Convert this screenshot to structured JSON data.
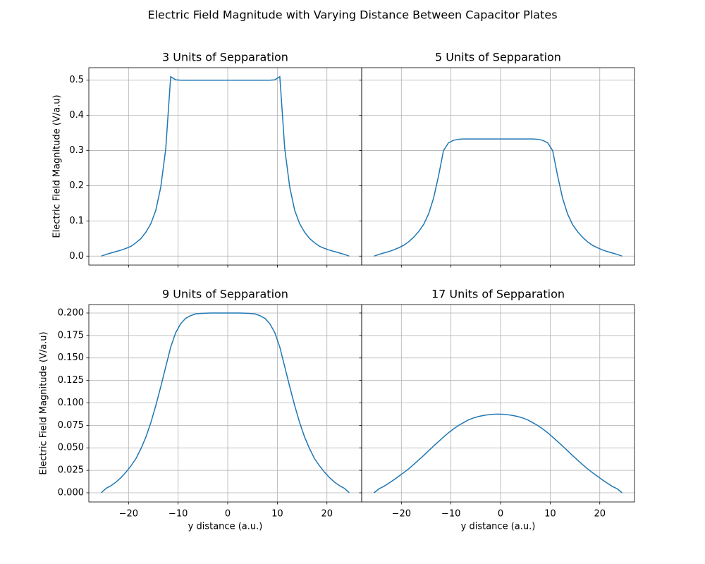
{
  "title": "Electric Field Magnitude with Varying Distance Between Capacitor Plates",
  "chart_data": [
    {
      "type": "line",
      "title": "3 Units of Sepparation",
      "ylabel": "Electric Field Magnitude (V/a.u)",
      "x": [
        -25.5,
        -24.5,
        -23.5,
        -22.5,
        -21.5,
        -20.5,
        -19.5,
        -18.5,
        -17.5,
        -16.5,
        -15.5,
        -14.5,
        -13.5,
        -12.5,
        -11.5,
        -10.5,
        -9.5,
        -8.5,
        -7.5,
        -6.5,
        -5.5,
        -4.5,
        -3.5,
        -2.5,
        -1.5,
        -0.5,
        0.5,
        1.5,
        2.5,
        3.5,
        4.5,
        5.5,
        6.5,
        7.5,
        8.5,
        9.5,
        10.5,
        11.5,
        12.5,
        13.5,
        14.5,
        15.5,
        16.5,
        17.5,
        18.5,
        19.5,
        20.5,
        21.5,
        22.5,
        23.5,
        24.5
      ],
      "values": [
        0,
        0.005,
        0.009,
        0.013,
        0.017,
        0.022,
        0.028,
        0.038,
        0.05,
        0.068,
        0.092,
        0.13,
        0.196,
        0.304,
        0.51,
        0.501,
        0.5,
        0.5,
        0.5,
        0.5,
        0.5,
        0.5,
        0.5,
        0.5,
        0.5,
        0.5,
        0.5,
        0.5,
        0.5,
        0.5,
        0.5,
        0.5,
        0.5,
        0.5,
        0.5,
        0.501,
        0.51,
        0.304,
        0.196,
        0.13,
        0.092,
        0.068,
        0.05,
        0.038,
        0.028,
        0.022,
        0.017,
        0.013,
        0.009,
        0.005,
        0
      ],
      "color": "#1f77b4",
      "grid": true,
      "xlim": [
        -28,
        27
      ],
      "xticks": [
        -20,
        -10,
        0,
        10,
        20
      ],
      "xtick_labels": false,
      "ylim": [
        -0.0255,
        0.5355
      ],
      "yticks": [
        {
          "value": 0,
          "label": "0.0"
        },
        0.1,
        0.2,
        0.3,
        0.4,
        0.5
      ],
      "ytick_labels": true
    },
    {
      "type": "line",
      "title": "5 Units of Sepparation",
      "x": [
        -25.5,
        -24.5,
        -23.5,
        -22.5,
        -21.5,
        -20.5,
        -19.5,
        -18.5,
        -17.5,
        -16.5,
        -15.5,
        -14.5,
        -13.5,
        -12.5,
        -11.5,
        -10.5,
        -9.5,
        -8.5,
        -7.5,
        -6.5,
        -5.5,
        -4.5,
        -3.5,
        -2.5,
        -1.5,
        -0.5,
        0.5,
        1.5,
        2.5,
        3.5,
        4.5,
        5.5,
        6.5,
        7.5,
        8.5,
        9.5,
        10.5,
        11.5,
        12.5,
        13.5,
        14.5,
        15.5,
        16.5,
        17.5,
        18.5,
        19.5,
        20.5,
        21.5,
        22.5,
        23.5,
        24.5
      ],
      "values": [
        0,
        0.005,
        0.009,
        0.013,
        0.018,
        0.024,
        0.031,
        0.041,
        0.054,
        0.07,
        0.09,
        0.12,
        0.165,
        0.228,
        0.3,
        0.322,
        0.329,
        0.332,
        0.333,
        0.333,
        0.333,
        0.333,
        0.333,
        0.333,
        0.333,
        0.333,
        0.333,
        0.333,
        0.333,
        0.333,
        0.333,
        0.333,
        0.333,
        0.332,
        0.329,
        0.322,
        0.3,
        0.228,
        0.165,
        0.12,
        0.09,
        0.07,
        0.054,
        0.041,
        0.031,
        0.024,
        0.018,
        0.013,
        0.009,
        0.005,
        0
      ],
      "color": "#1f77b4",
      "grid": true,
      "xlim": [
        -28,
        27
      ],
      "xticks": [
        -20,
        -10,
        0,
        10,
        20
      ],
      "xtick_labels": false,
      "ylim": [
        -0.0255,
        0.5355
      ],
      "yticks": [
        0,
        0.1,
        0.2,
        0.3,
        0.4,
        0.5
      ],
      "ytick_labels": false
    },
    {
      "type": "line",
      "title": "9 Units of Sepparation",
      "ylabel": "Electric Field Magnitude (V/a.u)",
      "xlabel": "y distance (a.u.)",
      "x": [
        -25.5,
        -24.5,
        -23.5,
        -22.5,
        -21.5,
        -20.5,
        -19.5,
        -18.5,
        -17.5,
        -16.5,
        -15.5,
        -14.5,
        -13.5,
        -12.5,
        -11.5,
        -10.5,
        -9.5,
        -8.5,
        -7.5,
        -6.5,
        -5.5,
        -4.5,
        -3.5,
        -2.5,
        -1.5,
        -0.5,
        0.5,
        1.5,
        2.5,
        3.5,
        4.5,
        5.5,
        6.5,
        7.5,
        8.5,
        9.5,
        10.5,
        11.5,
        12.5,
        13.5,
        14.5,
        15.5,
        16.5,
        17.5,
        18.5,
        19.5,
        20.5,
        21.5,
        22.5,
        23.5,
        24.5
      ],
      "values": [
        0,
        0.005,
        0.008,
        0.012,
        0.017,
        0.023,
        0.03,
        0.038,
        0.049,
        0.062,
        0.078,
        0.097,
        0.118,
        0.14,
        0.162,
        0.178,
        0.188,
        0.194,
        0.197,
        0.199,
        0.1995,
        0.1998,
        0.2,
        0.2,
        0.2,
        0.2,
        0.2,
        0.2,
        0.2,
        0.1998,
        0.1995,
        0.199,
        0.197,
        0.194,
        0.188,
        0.178,
        0.162,
        0.14,
        0.118,
        0.097,
        0.078,
        0.062,
        0.049,
        0.038,
        0.03,
        0.023,
        0.017,
        0.012,
        0.008,
        0.005,
        0
      ],
      "color": "#1f77b4",
      "grid": true,
      "xlim": [
        -28,
        27
      ],
      "xticks": [
        {
          "value": -20,
          "label": "−20"
        },
        {
          "value": -10,
          "label": "−10"
        },
        0,
        10,
        20
      ],
      "xtick_labels": true,
      "ylim": [
        -0.0102,
        0.2094
      ],
      "yticks": [
        {
          "value": 0,
          "label": "0.000"
        },
        0.025,
        {
          "value": 0.05,
          "label": "0.050"
        },
        0.075,
        {
          "value": 0.1,
          "label": "0.100"
        },
        0.125,
        {
          "value": 0.15,
          "label": "0.150"
        },
        0.175,
        {
          "value": 0.2,
          "label": "0.200"
        }
      ],
      "ytick_labels": true
    },
    {
      "type": "line",
      "title": "17 Units of Sepparation",
      "xlabel": "y distance (a.u.)",
      "x": [
        -25.5,
        -24.5,
        -23.5,
        -22.5,
        -21.5,
        -20.5,
        -19.5,
        -18.5,
        -17.5,
        -16.5,
        -15.5,
        -14.5,
        -13.5,
        -12.5,
        -11.5,
        -10.5,
        -9.5,
        -8.5,
        -7.5,
        -6.5,
        -5.5,
        -4.5,
        -3.5,
        -2.5,
        -1.5,
        -0.5,
        0.5,
        1.5,
        2.5,
        3.5,
        4.5,
        5.5,
        6.5,
        7.5,
        8.5,
        9.5,
        10.5,
        11.5,
        12.5,
        13.5,
        14.5,
        15.5,
        16.5,
        17.5,
        18.5,
        19.5,
        20.5,
        21.5,
        22.5,
        23.5,
        24.5
      ],
      "values": [
        0,
        0.0045,
        0.0072,
        0.0108,
        0.0145,
        0.0185,
        0.0225,
        0.0268,
        0.0315,
        0.0365,
        0.0415,
        0.0468,
        0.052,
        0.057,
        0.062,
        0.0668,
        0.071,
        0.0748,
        0.078,
        0.081,
        0.0832,
        0.0848,
        0.086,
        0.0868,
        0.0873,
        0.0875,
        0.0873,
        0.0868,
        0.086,
        0.0848,
        0.0832,
        0.081,
        0.078,
        0.0748,
        0.071,
        0.0668,
        0.062,
        0.057,
        0.052,
        0.0468,
        0.0415,
        0.0365,
        0.0315,
        0.0268,
        0.0225,
        0.0185,
        0.0145,
        0.0108,
        0.0072,
        0.0045,
        0
      ],
      "color": "#1f77b4",
      "grid": true,
      "xlim": [
        -28,
        27
      ],
      "xticks": [
        {
          "value": -20,
          "label": "−20"
        },
        {
          "value": -10,
          "label": "−10"
        },
        0,
        10,
        20
      ],
      "xtick_labels": true,
      "ylim": [
        -0.0102,
        0.2094
      ],
      "yticks": [
        0,
        0.025,
        0.05,
        0.075,
        0.1,
        0.125,
        0.15,
        0.175,
        0.2
      ],
      "ytick_labels": false
    }
  ]
}
